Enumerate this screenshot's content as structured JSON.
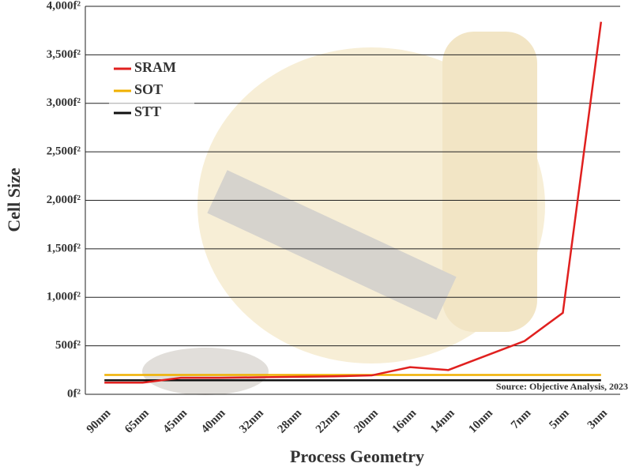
{
  "chart_data": {
    "type": "line",
    "x_label": "Process Geometry",
    "y_label": "Cell Size",
    "annotation": "Source: Objective Analysis, 2023",
    "categories": [
      "90nm",
      "65nm",
      "45nm",
      "40nm",
      "32nm",
      "28nm",
      "22nm",
      "20nm",
      "16nm",
      "14nm",
      "10nm",
      "7nm",
      "5nm",
      "3nm"
    ],
    "series": [
      {
        "name": "SRAM",
        "color": "#e0201f",
        "values": [
          120,
          120,
          170,
          170,
          175,
          180,
          185,
          195,
          280,
          250,
          400,
          550,
          840,
          3840
        ]
      },
      {
        "name": "SOT",
        "color": "#f0b000",
        "values": [
          200,
          200,
          200,
          200,
          200,
          200,
          200,
          200,
          200,
          200,
          200,
          200,
          200,
          200
        ]
      },
      {
        "name": "STT",
        "color": "#111111",
        "values": [
          145,
          145,
          145,
          145,
          145,
          145,
          145,
          145,
          145,
          145,
          145,
          145,
          145,
          145
        ]
      }
    ],
    "ylim": [
      0,
      4000
    ],
    "yticks": [
      {
        "value": 0,
        "label": "0f²"
      },
      {
        "value": 500,
        "label": "500f²"
      },
      {
        "value": 1000,
        "label": "1,000f²"
      },
      {
        "value": 1500,
        "label": "1,500f²"
      },
      {
        "value": 2000,
        "label": "2,000f²"
      },
      {
        "value": 2500,
        "label": "2,500f²"
      },
      {
        "value": 3000,
        "label": "3,000f²"
      },
      {
        "value": 3500,
        "label": "3,500f²"
      },
      {
        "value": 4000,
        "label": "4,000f²"
      }
    ],
    "grid": true,
    "legend": "upper left"
  }
}
